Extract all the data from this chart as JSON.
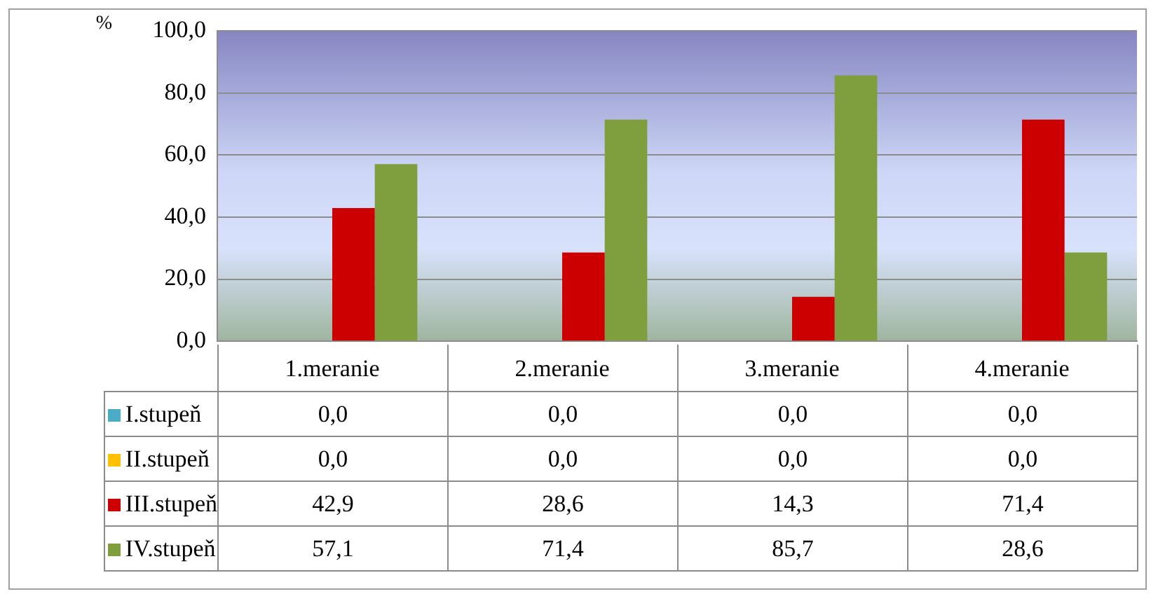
{
  "chart_data": {
    "type": "bar",
    "ylabel": "%",
    "categories": [
      "1.meranie",
      "2.meranie",
      "3.meranie",
      "4.meranie"
    ],
    "series": [
      {
        "name": "I.stupeň",
        "color": "#4bacc6",
        "values": [
          0,
          0,
          0,
          0
        ],
        "value_labels": [
          "0,0",
          "0,0",
          "0,0",
          "0,0"
        ]
      },
      {
        "name": "II.stupeň",
        "color": "#ffc000",
        "values": [
          0,
          0,
          0,
          0
        ],
        "value_labels": [
          "0,0",
          "0,0",
          "0,0",
          "0,0"
        ]
      },
      {
        "name": "III.stupeň",
        "color": "#cc0000",
        "values": [
          42.9,
          28.6,
          14.3,
          71.4
        ],
        "value_labels": [
          "42,9",
          "28,6",
          "14,3",
          "71,4"
        ]
      },
      {
        "name": "IV.stupeň",
        "color": "#7f9f3f",
        "values": [
          57.1,
          71.4,
          85.7,
          28.6
        ],
        "value_labels": [
          "57,1",
          "71,4",
          "85,7",
          "28,6"
        ]
      }
    ],
    "ylim": [
      0,
      100
    ],
    "yticks": [
      {
        "value": 0,
        "label": "0,0"
      },
      {
        "value": 20,
        "label": "20,0"
      },
      {
        "value": 40,
        "label": "40,0"
      },
      {
        "value": 60,
        "label": "60,0"
      },
      {
        "value": 80,
        "label": "80,0"
      },
      {
        "value": 100,
        "label": "100,0"
      }
    ],
    "grid": "y",
    "legend": "bottom"
  }
}
